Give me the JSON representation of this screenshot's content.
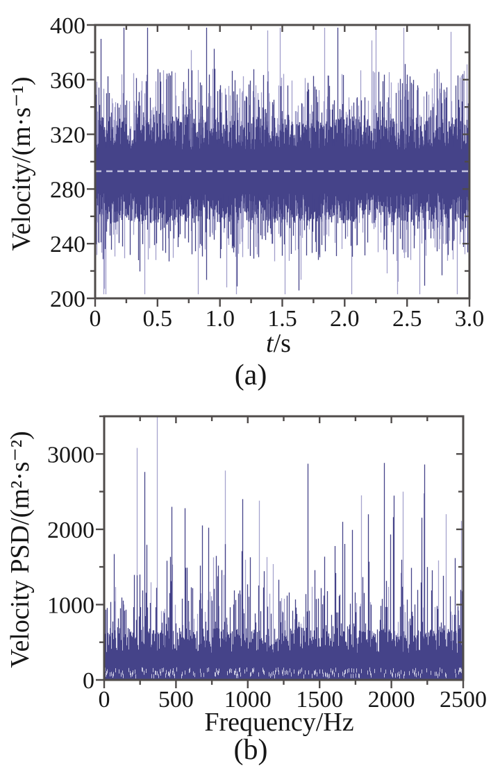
{
  "page": {
    "background": "#ffffff"
  },
  "figure": {
    "captions": {
      "a": "(a)",
      "b": "(b)"
    }
  },
  "chart_data": [
    {
      "id": "a",
      "type": "line",
      "kind": "noise_band",
      "title": "",
      "xlabel_italic": "t",
      "xlabel_rest": "/s",
      "ylabel": "Velocity/(m·s⁻¹)",
      "xlim": [
        0,
        3.0
      ],
      "ylim": [
        200,
        400
      ],
      "x_major_ticks": [
        0,
        0.5,
        1.0,
        1.5,
        2.0,
        2.5,
        3.0
      ],
      "x_tick_labels": [
        "0",
        "0.5",
        "1.0",
        "1.5",
        "2.0",
        "2.5",
        "3.0"
      ],
      "x_minor_step": 0.25,
      "y_major_ticks": [
        200,
        240,
        280,
        320,
        360,
        400
      ],
      "y_tick_labels": [
        "200",
        "240",
        "280",
        "320",
        "360",
        "400"
      ],
      "y_minor_step": 20,
      "grid": false,
      "legend": null,
      "mean_line": {
        "value": 293,
        "style": "dashed"
      },
      "signal_stats": {
        "mean_velocity": 293,
        "solid_band": [
          266,
          320
        ],
        "typical_extent": [
          240,
          350
        ],
        "min": 203,
        "max": 398,
        "duration_s": 3.0
      },
      "forced_spikes": [
        {
          "t": 0.07,
          "value": 207
        },
        {
          "t": 1.05,
          "value": 208
        },
        {
          "t": 1.38,
          "value": 396
        },
        {
          "t": 2.25,
          "value": 398
        },
        {
          "t": 2.42,
          "value": 203
        },
        {
          "t": 2.85,
          "value": 395
        }
      ],
      "seed": 20240613,
      "colors": {
        "dark": "#454389",
        "light": "#a19fcb",
        "mean_dash": "#bfbeda",
        "axis": "#4f4b4a",
        "text": "#161616"
      }
    },
    {
      "id": "b",
      "type": "line",
      "kind": "spectrum",
      "title": "",
      "xlabel_italic": "",
      "xlabel_rest": "Frequency/Hz",
      "ylabel": "Velocity PSD/(m²·s⁻²)",
      "xlim": [
        0,
        2500
      ],
      "ylim": [
        0,
        3500
      ],
      "x_major_ticks": [
        0,
        500,
        1000,
        1500,
        2000,
        2500
      ],
      "x_tick_labels": [
        "0",
        "500",
        "1000",
        "1500",
        "2000",
        "2500"
      ],
      "x_minor_step": 250,
      "y_major_ticks": [
        0,
        1000,
        2000,
        3000
      ],
      "y_tick_labels": [
        "0",
        "1000",
        "2000",
        "3000"
      ],
      "y_minor_step": 500,
      "grid": false,
      "legend": null,
      "spectrum_stats": {
        "baseline_range": [
          200,
          1300
        ],
        "solid_mass_top": 700,
        "peak_value": 3500,
        "peak_freq_hz": 368
      },
      "forced_spikes": [
        {
          "f": 225,
          "value": 3080
        },
        {
          "f": 280,
          "value": 2760
        },
        {
          "f": 368,
          "value": 3500
        },
        {
          "f": 560,
          "value": 2280
        },
        {
          "f": 840,
          "value": 2780
        },
        {
          "f": 960,
          "value": 2400
        },
        {
          "f": 1080,
          "value": 2380
        },
        {
          "f": 1415,
          "value": 2870
        },
        {
          "f": 1790,
          "value": 2450
        },
        {
          "f": 1950,
          "value": 2880
        },
        {
          "f": 2080,
          "value": 2500
        },
        {
          "f": 2230,
          "value": 2860
        },
        {
          "f": 2380,
          "value": 2200
        }
      ],
      "seed": 987231,
      "colors": {
        "dark": "#454389",
        "light": "#a5a3cd",
        "speckle": "#cac9e0",
        "axis": "#4f4b4a",
        "text": "#161616"
      }
    }
  ]
}
